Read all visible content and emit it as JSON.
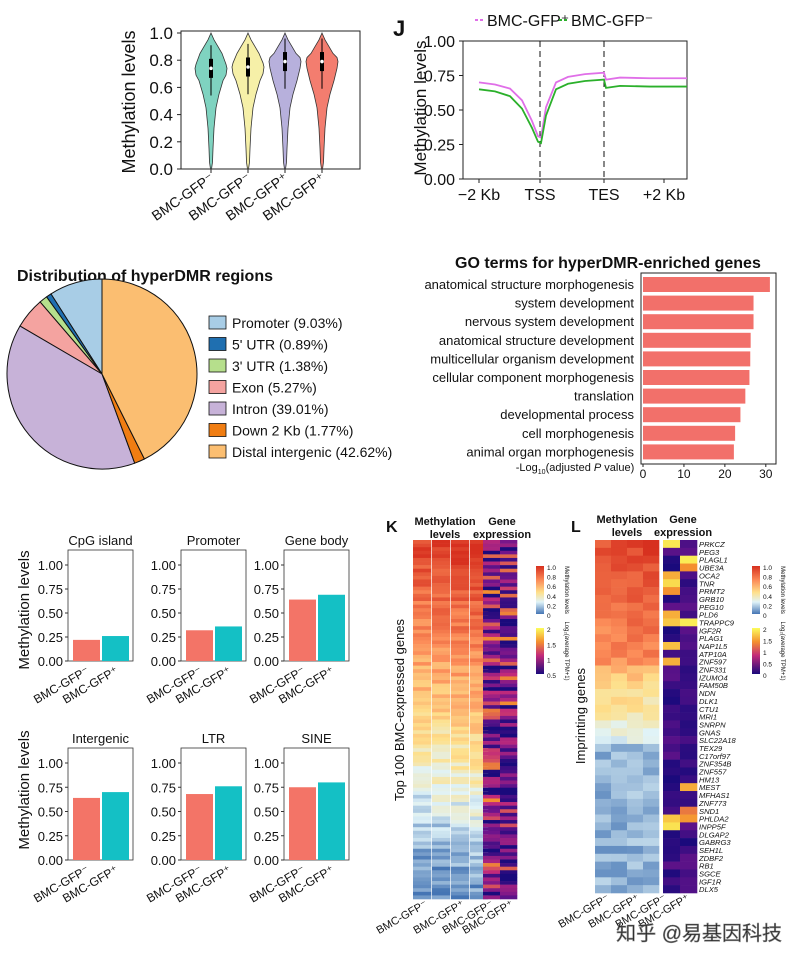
{
  "violin": {
    "ylabel": "Methylation levels",
    "yticks": [
      "0.0",
      "0.2",
      "0.4",
      "0.6",
      "0.8",
      "1.0"
    ],
    "groups": [
      {
        "label": "BMC-GFP⁻",
        "color": "#7fd3c0",
        "median": 0.74
      },
      {
        "label": "BMC-GFP⁻",
        "color": "#f6f0a8",
        "median": 0.75
      },
      {
        "label": "BMC-GFP⁺",
        "color": "#b7b0dc",
        "median": 0.79
      },
      {
        "label": "BMC-GFP⁺",
        "color": "#f37d6f",
        "median": 0.79
      }
    ]
  },
  "profile": {
    "panel": "J",
    "ylabel": "Methylation levels",
    "yticks": [
      "0.00",
      "0.25",
      "0.50",
      "0.75",
      "1.00"
    ],
    "xticks": [
      "−2 Kb",
      "TSS",
      "TES",
      "+2 Kb"
    ],
    "legend": [
      {
        "name": "BMC-GFP⁺",
        "color": "#e06fe8"
      },
      {
        "name": "BMC-GFP⁻",
        "color": "#2bb02b"
      }
    ]
  },
  "pie": {
    "title": "Distribution of hyperDMR regions",
    "slices": [
      {
        "label": "Promoter (9.03%)",
        "value": 9.03,
        "color": "#a8cde6"
      },
      {
        "label": "5' UTR (0.89%)",
        "value": 0.89,
        "color": "#1f6fb0"
      },
      {
        "label": "3' UTR (1.38%)",
        "value": 1.38,
        "color": "#b6df8c"
      },
      {
        "label": "Exon (5.27%)",
        "value": 5.27,
        "color": "#f4a3a0"
      },
      {
        "label": "Intron (39.01%)",
        "value": 39.01,
        "color": "#c7b2d8"
      },
      {
        "label": "Down 2 Kb (1.77%)",
        "value": 1.77,
        "color": "#f07d12"
      },
      {
        "label": "Distal intergenic (42.62%)",
        "value": 42.62,
        "color": "#fbbe71"
      }
    ]
  },
  "go": {
    "title": "GO terms for hyperDMR-enriched genes",
    "xlabel_pre": "-Log",
    "xlabel_sub": "10",
    "xlabel_post": "(adjusted ",
    "xlabel_p": "P",
    "xlabel_end": " value)",
    "xticks": [
      "0",
      "10",
      "20",
      "30"
    ],
    "terms": [
      "anatomical structure morphogenesis",
      "system development",
      "nervous system development",
      "anatomical structure development",
      "multicellular organism development",
      "cellular component morphogenesis",
      "translation",
      "developmental process",
      "cell morphogenesis",
      "animal organ morphogenesis"
    ]
  },
  "bars": {
    "ylabel": "Methylation levels",
    "yticks": [
      "0.00",
      "0.25",
      "0.50",
      "0.75",
      "1.00"
    ],
    "xlabels": [
      "BMC-GFP⁻",
      "BMC-GFP⁺"
    ],
    "colors": [
      "#f37467",
      "#14c0c5"
    ],
    "panels": [
      {
        "title": "CpG island"
      },
      {
        "title": "Promoter"
      },
      {
        "title": "Gene body"
      },
      {
        "title": "Intergenic"
      },
      {
        "title": "LTR"
      },
      {
        "title": "SINE"
      }
    ]
  },
  "heatK": {
    "panel": "K",
    "col1": [
      "Methylation",
      "levels"
    ],
    "col2": [
      "Gene",
      "expression"
    ],
    "ylabel": "Top 100 BMC-expressed genes",
    "xlabels": [
      "BMC-GFP⁻",
      "BMC-GFP⁺",
      "BMC-GFP⁻",
      "BMC-GFP⁺"
    ],
    "meth_legend": {
      "title": "Methylation levels",
      "ticks": [
        "1.0",
        "0.8",
        "0.6",
        "0.4",
        "0.2",
        "0"
      ]
    },
    "expr_legend": {
      "title": "Log₂(average TPM+1)",
      "ticks": [
        "2",
        "1.5",
        "1",
        "0.5"
      ]
    }
  },
  "heatL": {
    "panel": "L",
    "col1": [
      "Methylation",
      "levels"
    ],
    "col2": [
      "Gene",
      "expression"
    ],
    "ylabel": "Imprinting genes",
    "xlabels": [
      "BMC-GFP⁻",
      "BMC-GFP⁺",
      "BMC-GFP⁻",
      "BMC-GFP⁺"
    ],
    "genes": [
      "PRKCZ",
      "PEG3",
      "PLAGL1",
      "UBE3A",
      "OCA2",
      "TNR",
      "PRMT2",
      "GRB10",
      "PEG10",
      "PLD6",
      "TRAPPC9",
      "IGF2R",
      "PLAG1",
      "NAP1L5",
      "ATP10A",
      "ZNF597",
      "ZNF331",
      "IZUMO4",
      "FAM50B",
      "NDN",
      "DLK1",
      "CTU1",
      "MRI1",
      "SNRPN",
      "GNAS",
      "SLC22A18",
      "TEX29",
      "C17orf97",
      "ZNF354B",
      "ZNF557",
      "HM13",
      "MEST",
      "MFHAS1",
      "ZNF773",
      "SND1",
      "PHLDA2",
      "INPP5F",
      "DLGAP2",
      "GABRG3",
      "SEH1L",
      "ZDBF2",
      "RB1",
      "SGCE",
      "IGF1R",
      "DLX5"
    ],
    "meth_legend": {
      "title": "Methylation levels",
      "ticks": [
        "1.0",
        "0.8",
        "0.6",
        "0.4",
        "0.2",
        "0"
      ]
    },
    "expr_legend": {
      "title": "Log₂(average TPM+1)",
      "ticks": [
        "2",
        "1.5",
        "1",
        "0.5",
        "0"
      ]
    }
  },
  "watermark": "知乎 @易基因科技",
  "chart_data": [
    {
      "type": "violin",
      "ylabel": "Methylation levels",
      "ylim": [
        0,
        1
      ],
      "categories": [
        "BMC-GFP⁻",
        "BMC-GFP⁻",
        "BMC-GFP⁺",
        "BMC-GFP⁺"
      ],
      "medians": [
        0.74,
        0.75,
        0.79,
        0.79
      ]
    },
    {
      "type": "line",
      "panel": "J",
      "ylabel": "Methylation levels",
      "ylim": [
        0,
        1
      ],
      "x": [
        "−2 Kb",
        "TSS",
        "TES",
        "+2 Kb"
      ],
      "series": [
        {
          "name": "BMC-GFP⁺",
          "values": [
            0.7,
            0.3,
            0.77,
            0.73
          ]
        },
        {
          "name": "BMC-GFP⁻",
          "values": [
            0.65,
            0.25,
            0.72,
            0.67
          ]
        }
      ]
    },
    {
      "type": "pie",
      "title": "Distribution of hyperDMR regions",
      "categories": [
        "Promoter",
        "5' UTR",
        "3' UTR",
        "Exon",
        "Intron",
        "Down 2 Kb",
        "Distal intergenic"
      ],
      "values": [
        9.03,
        0.89,
        1.38,
        5.27,
        39.01,
        1.77,
        42.62
      ]
    },
    {
      "type": "bar",
      "title": "GO terms for hyperDMR-enriched genes",
      "xlabel": "-Log10(adjusted P value)",
      "xlim": [
        0,
        32
      ],
      "categories": [
        "anatomical structure morphogenesis",
        "system development",
        "nervous system development",
        "anatomical structure development",
        "multicellular organism development",
        "cellular component morphogenesis",
        "translation",
        "developmental process",
        "cell morphogenesis",
        "animal organ morphogenesis"
      ],
      "values": [
        31.0,
        27.0,
        27.0,
        26.3,
        26.2,
        26.0,
        25.0,
        23.8,
        22.5,
        22.2
      ]
    },
    {
      "type": "bar",
      "ylabel": "Methylation levels",
      "ylim": [
        0,
        1
      ],
      "categories": [
        "CpG island",
        "Promoter",
        "Gene body",
        "Intergenic",
        "LTR",
        "SINE"
      ],
      "series": [
        {
          "name": "BMC-GFP⁻",
          "values": [
            0.22,
            0.32,
            0.64,
            0.64,
            0.68,
            0.75
          ]
        },
        {
          "name": "BMC-GFP⁺",
          "values": [
            0.26,
            0.36,
            0.69,
            0.7,
            0.76,
            0.8
          ]
        }
      ]
    },
    {
      "type": "heatmap",
      "panel": "K",
      "ylabel": "Top 100 BMC-expressed genes",
      "rows": 100,
      "columns": [
        "BMC-GFP⁻",
        "BMC-GFP⁺",
        "BMC-GFP⁻",
        "BMC-GFP⁺"
      ]
    },
    {
      "type": "heatmap",
      "panel": "L",
      "ylabel": "Imprinting genes",
      "rows": 45,
      "columns": [
        "BMC-GFP⁻",
        "BMC-GFP⁺",
        "BMC-GFP⁻",
        "BMC-GFP⁺"
      ]
    }
  ]
}
